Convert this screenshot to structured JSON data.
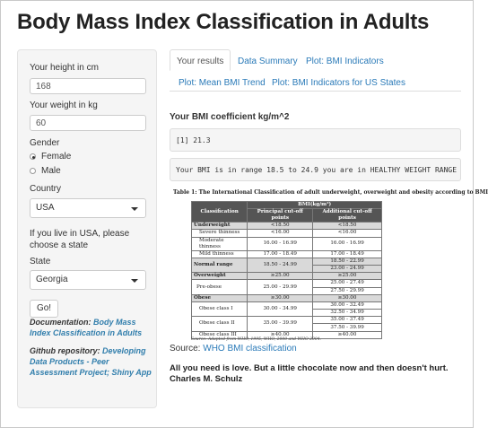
{
  "header": {
    "title": "Body Mass Index Classification in Adults"
  },
  "sidebar": {
    "height_label": "Your height in cm",
    "height_value": "168",
    "weight_label": "Your weight in kg",
    "weight_value": "60",
    "gender_label": "Gender",
    "gender_options": [
      "Female",
      "Male"
    ],
    "gender_selected": "Female",
    "country_label": "Country",
    "country_value": "USA",
    "usa_note": "If you live in USA, please choose a state",
    "state_label": "State",
    "state_value": "Georgia",
    "go_label": "Go!",
    "doc_label": "Documentation:",
    "doc_link": "Body Mass Index Classification in Adults",
    "repo_label": "Github repository:",
    "repo_link": "Developing Data Products - Peer Assessment Project; Shiny App"
  },
  "tabs": [
    {
      "label": "Your results",
      "active": true
    },
    {
      "label": "Data Summary",
      "active": false
    },
    {
      "label": "Plot: BMI Indicators",
      "active": false
    },
    {
      "label": "Plot: Mean BMI Trend",
      "active": false
    },
    {
      "label": "Plot: BMI Indicators for US States",
      "active": false
    }
  ],
  "main": {
    "heading": "Your BMI coefficient kg/m^2",
    "bmi_output": "[1] 21.3",
    "range_output": "Your BMI is in range 18.5 to 24.9 you are in HEALTHY WEIGHT RANGE",
    "table_title": "Table 1: The International Classification of adult underweight, overweight and obesity according to BMI",
    "table_head": {
      "classification": "Classification",
      "bmi": "BMI(kg/m²)",
      "principal": "Principal cut-off points",
      "additional": "Additional cut-off points"
    },
    "table_rows": [
      {
        "name": "Underweight",
        "p": "<18.50",
        "a": [
          "<18.50"
        ],
        "style": "g"
      },
      {
        "name": "Severe thinness",
        "p": "<16.00",
        "a": [
          "<16.00"
        ],
        "style": "i"
      },
      {
        "name": "Moderate thinness",
        "p": "16.00 - 16.99",
        "a": [
          "16.00 - 16.99"
        ],
        "style": "i"
      },
      {
        "name": "Mild thinness",
        "p": "17.00 - 18.49",
        "a": [
          "17.00 - 18.49"
        ],
        "style": "i"
      },
      {
        "name": "Normal range",
        "p": "18.50 - 24.99",
        "a": [
          "18.50 - 22.99",
          "23.00 - 24.99"
        ],
        "style": "g"
      },
      {
        "name": "Overweight",
        "p": "≥25.00",
        "a": [
          "≥25.00"
        ],
        "style": "g"
      },
      {
        "name": "Pre-obese",
        "p": "25.00 - 29.99",
        "a": [
          "25.00 - 27.49",
          "27.50 - 29.99"
        ],
        "style": "i2"
      },
      {
        "name": "Obese",
        "p": "≥30.00",
        "a": [
          "≥30.00"
        ],
        "style": "g"
      },
      {
        "name": "Obese class I",
        "p": "30.00 - 34.99",
        "a": [
          "30.00 - 32.49",
          "32.50 - 34.99"
        ],
        "style": "i"
      },
      {
        "name": "Obese class II",
        "p": "35.00 - 39.99",
        "a": [
          "35.00 - 37.49",
          "37.50 - 39.99"
        ],
        "style": "i"
      },
      {
        "name": "Obese class III",
        "p": "≥40.00",
        "a": [
          "≥40.00"
        ],
        "style": "i"
      }
    ],
    "table_source": "Source: Adapted from WHO, 1995, WHO, 2000 and WHO 2004.",
    "source_label": "Source:",
    "source_link": "WHO BMI classification",
    "quote_line1": "All you need is love. But a little chocolate now and then doesn't hurt.",
    "quote_line2": "Charles M. Schulz"
  }
}
